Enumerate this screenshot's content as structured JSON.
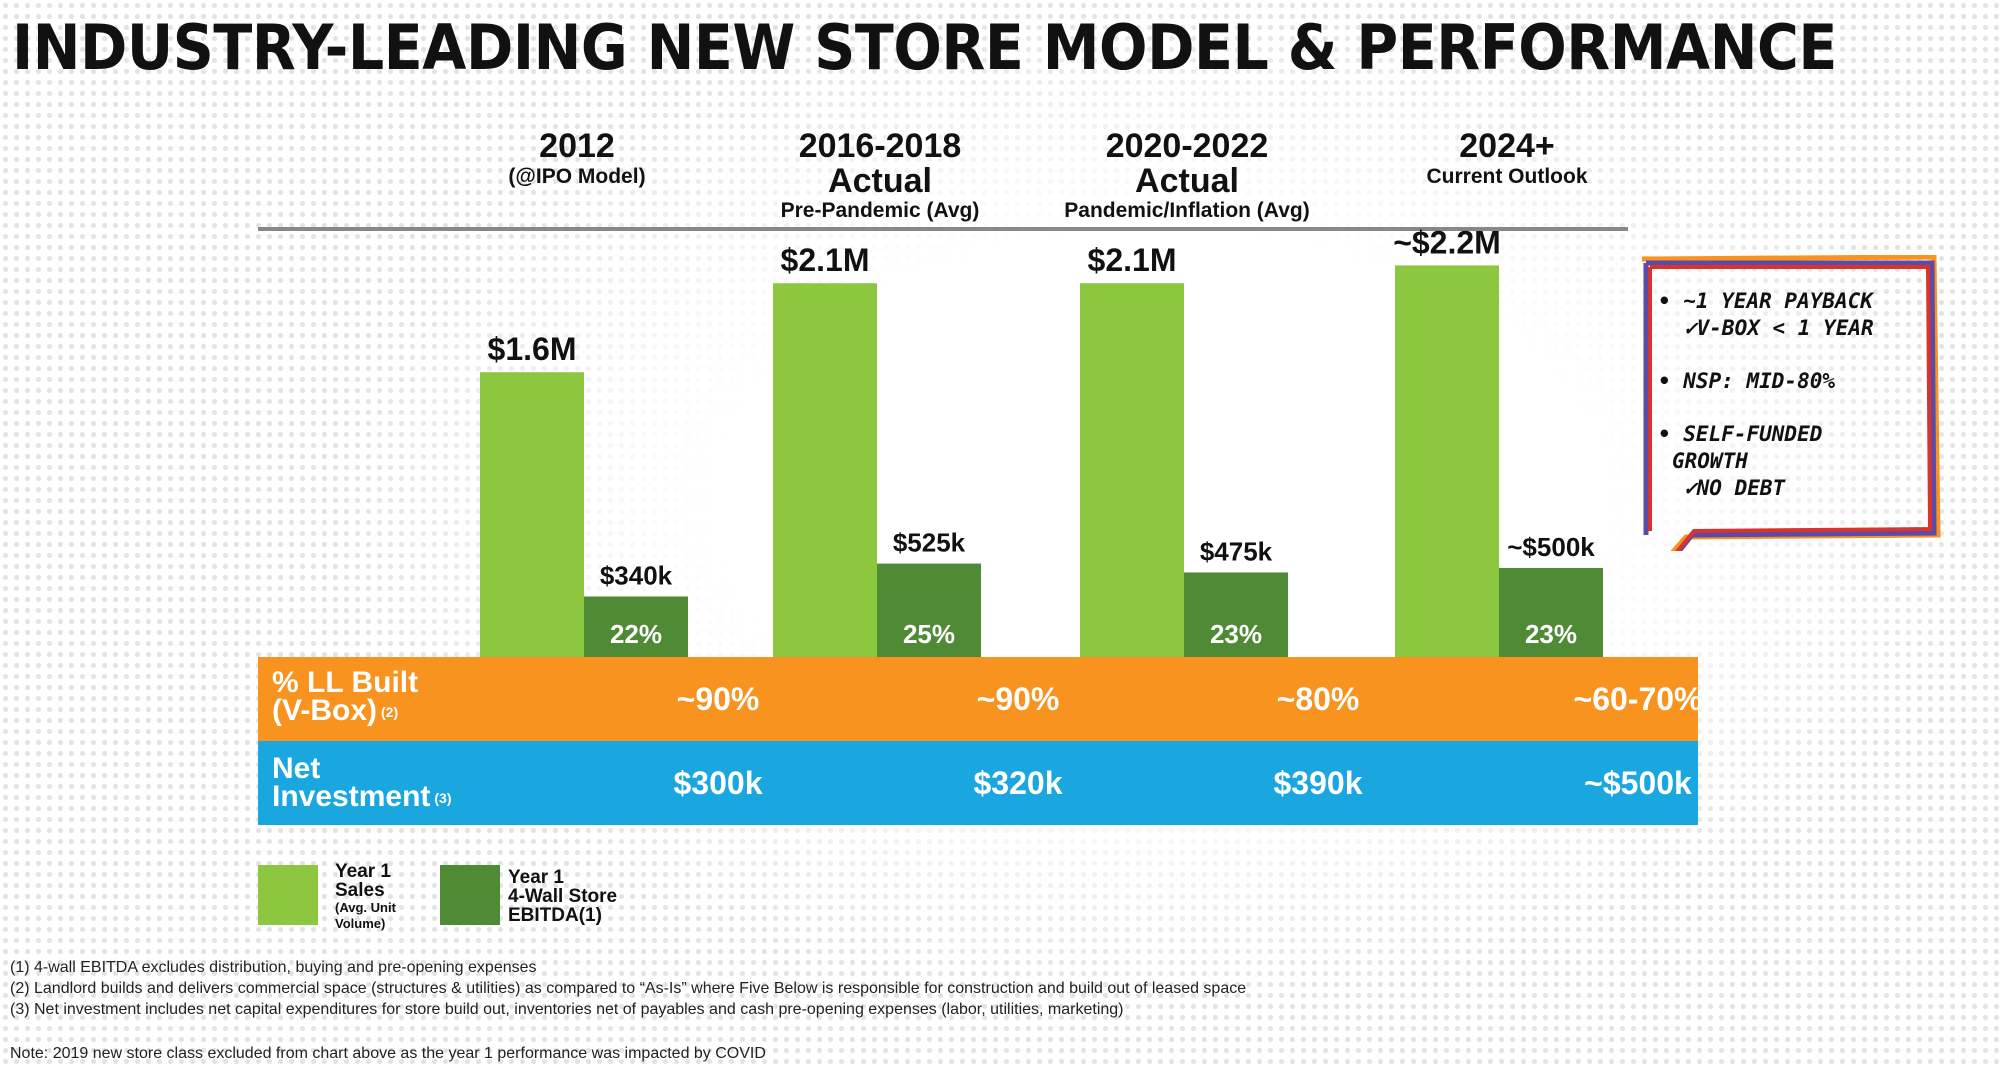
{
  "title": "INDUSTRY-LEADING NEW STORE MODEL & PERFORMANCE",
  "columns": [
    {
      "head1": "2012",
      "head2": "",
      "head3": "(@IPO Model)"
    },
    {
      "head1": "2016-2018",
      "head2": "Actual",
      "head3": "Pre-Pandemic (Avg)"
    },
    {
      "head1": "2020-2022",
      "head2": "Actual",
      "head3": "Pandemic/Inflation (Avg)"
    },
    {
      "head1": "2024+",
      "head2": "",
      "head3": "Current Outlook"
    }
  ],
  "chart_data": {
    "type": "bar",
    "categories": [
      "2012",
      "2016-2018",
      "2020-2022",
      "2024+"
    ],
    "series": [
      {
        "name": "Year 1 Sales (Avg. Unit Volume)",
        "values": [
          1.6,
          2.1,
          2.1,
          2.2
        ],
        "labels": [
          "$1.6M",
          "$2.1M",
          "$2.1M",
          "~$2.2M"
        ],
        "color": "#8dc63f"
      },
      {
        "name": "Year 1 4-Wall Store EBITDA(1)",
        "values": [
          0.34,
          0.525,
          0.475,
          0.5
        ],
        "labels": [
          "$340k",
          "$525k",
          "$475k",
          "~$500k"
        ],
        "margins": [
          "22%",
          "25%",
          "23%",
          "23%"
        ],
        "color": "#4f8a35"
      }
    ],
    "unit": "$M"
  },
  "rows": {
    "ll_built": {
      "label_1": "% LL Built",
      "label_2": "(V-Box)",
      "note": "(2)",
      "values": [
        "~90%",
        "~90%",
        "~80%",
        "~60-70%"
      ]
    },
    "net_investment": {
      "label_1": "Net",
      "label_2": "Investment",
      "note": "(3)",
      "values": [
        "$300k",
        "$320k",
        "$390k",
        "~$500k"
      ]
    }
  },
  "colors": {
    "sales": "#8dc63f",
    "ebitda": "#4f8a35",
    "orange": "#f7931e",
    "blue": "#1aa7e0"
  },
  "legend": {
    "sales": {
      "l1": "Year 1",
      "l2": "Sales",
      "l3": "(Avg. Unit",
      "l4": "Volume)"
    },
    "ebitda": {
      "l1": "Year 1",
      "l2": "4-Wall Store",
      "l3": "EBITDA(1)"
    }
  },
  "callout": {
    "item1_a": "• ~1 YEAR PAYBACK",
    "item1_b": "✓V-BOX < 1 YEAR",
    "item2": "• NSP: MID-80%",
    "item3_a": "• SELF-FUNDED",
    "item3_b": "GROWTH",
    "item3_c": "✓NO DEBT"
  },
  "footnotes": [
    "(1) 4-wall EBITDA excludes distribution, buying and pre-opening expenses",
    "(2) Landlord builds and delivers commercial space (structures & utilities)  as compared to “As-Is” where Five Below is responsible for construction and build out of leased space",
    "(3) Net investment includes net capital expenditures for store build out, inventories net of payables and cash pre-opening expenses (labor, utilities, marketing)"
  ],
  "note": "Note: 2019 new store class excluded from chart above as the year 1 performance was impacted by COVID"
}
